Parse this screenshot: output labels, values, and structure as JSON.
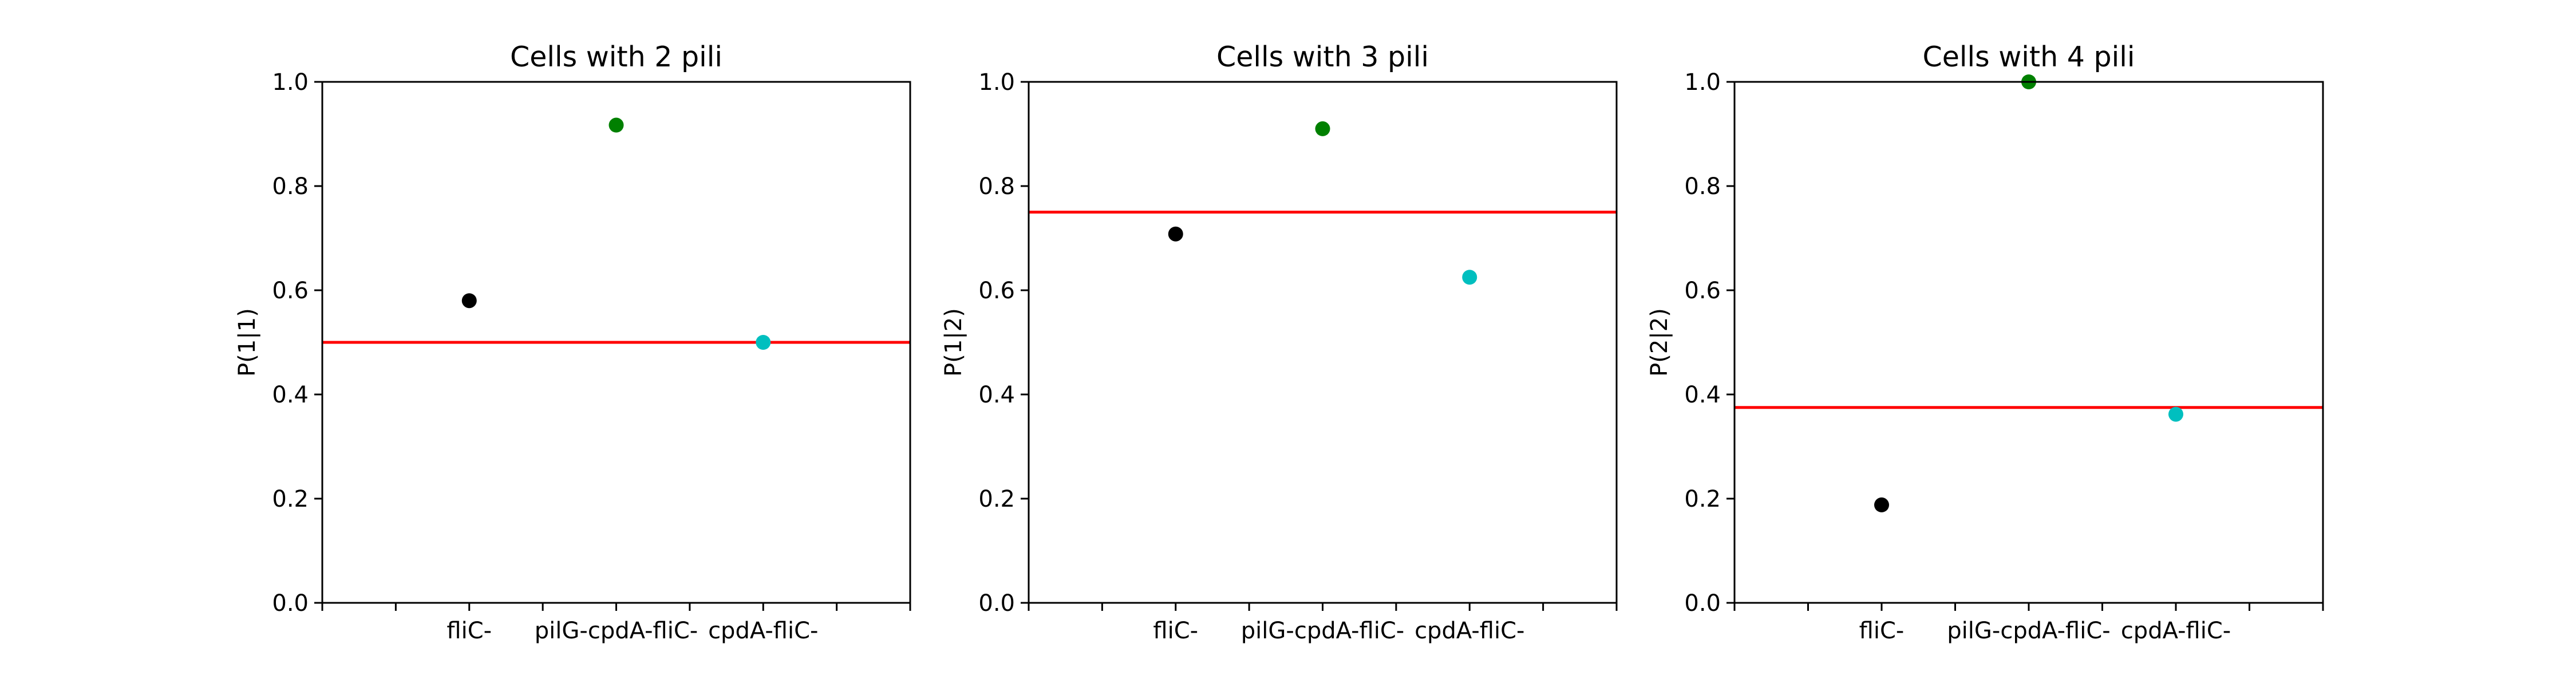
{
  "chart_data": [
    {
      "type": "scatter",
      "title": "Cells with 2 pili",
      "ylabel": "P(1|1)",
      "xlabel": "",
      "categories": [
        "fliC-",
        "pilG-cpdA-fliC-",
        "cpdA-fliC-"
      ],
      "xlim": [
        -1,
        3
      ],
      "ylim": [
        0,
        1.0
      ],
      "yticks": [
        "0.0",
        "0.2",
        "0.4",
        "0.6",
        "0.8",
        "1.0"
      ],
      "points": [
        {
          "category": "fliC-",
          "x": 0,
          "y": 0.58,
          "color": "#000000"
        },
        {
          "category": "pilG-cpdA-fliC-",
          "x": 1,
          "y": 0.917,
          "color": "#008000"
        },
        {
          "category": "cpdA-fliC-",
          "x": 2,
          "y": 0.5,
          "color": "#00bfbf"
        }
      ],
      "reference_line": {
        "y": 0.5,
        "color": "#ff0000"
      }
    },
    {
      "type": "scatter",
      "title": "Cells with 3 pili",
      "ylabel": "P(1|2)",
      "xlabel": "",
      "categories": [
        "fliC-",
        "pilG-cpdA-fliC-",
        "cpdA-fliC-"
      ],
      "xlim": [
        -1,
        3
      ],
      "ylim": [
        0,
        1.0
      ],
      "yticks": [
        "0.0",
        "0.2",
        "0.4",
        "0.6",
        "0.8",
        "1.0"
      ],
      "points": [
        {
          "category": "fliC-",
          "x": 0,
          "y": 0.708,
          "color": "#000000"
        },
        {
          "category": "pilG-cpdA-fliC-",
          "x": 1,
          "y": 0.91,
          "color": "#008000"
        },
        {
          "category": "cpdA-fliC-",
          "x": 2,
          "y": 0.625,
          "color": "#00bfbf"
        }
      ],
      "reference_line": {
        "y": 0.75,
        "color": "#ff0000"
      }
    },
    {
      "type": "scatter",
      "title": "Cells with 4 pili",
      "ylabel": "P(2|2)",
      "xlabel": "",
      "categories": [
        "fliC-",
        "pilG-cpdA-fliC-",
        "cpdA-fliC-"
      ],
      "xlim": [
        -1,
        3
      ],
      "ylim": [
        0,
        1.0
      ],
      "yticks": [
        "0.0",
        "0.2",
        "0.4",
        "0.6",
        "0.8",
        "1.0"
      ],
      "points": [
        {
          "category": "fliC-",
          "x": 0,
          "y": 0.188,
          "color": "#000000"
        },
        {
          "category": "pilG-cpdA-fliC-",
          "x": 1,
          "y": 1.0,
          "color": "#008000"
        },
        {
          "category": "cpdA-fliC-",
          "x": 2,
          "y": 0.362,
          "color": "#00bfbf"
        }
      ],
      "reference_line": {
        "y": 0.375,
        "color": "#ff0000"
      }
    }
  ]
}
